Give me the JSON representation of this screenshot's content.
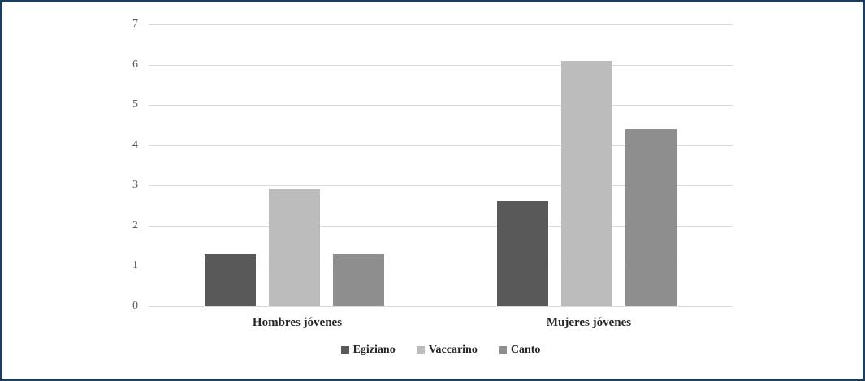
{
  "frame": {
    "border_color": "#1e3c5c",
    "background_color": "#ffffff"
  },
  "chart_data": {
    "type": "bar",
    "title": "",
    "categories": [
      "Hombres jóvenes",
      "Mujeres jóvenes"
    ],
    "series": [
      {
        "name": "Egiziano",
        "color": "#595959",
        "values": [
          1.3,
          2.6
        ]
      },
      {
        "name": "Vaccarino",
        "color": "#bcbcbc",
        "values": [
          2.9,
          6.1
        ]
      },
      {
        "name": "Canto",
        "color": "#8e8e8e",
        "values": [
          1.3,
          4.4
        ]
      }
    ],
    "y_axis": {
      "min": 0,
      "max": 7,
      "tick_step": 1,
      "tick_labels": [
        "0",
        "1",
        "2",
        "3",
        "4",
        "5",
        "6",
        "7"
      ]
    },
    "grid": true,
    "gridline_color": "#d9d9d9",
    "legend_position": "bottom",
    "text_color": "#262626",
    "tick_label_color": "#595959"
  }
}
